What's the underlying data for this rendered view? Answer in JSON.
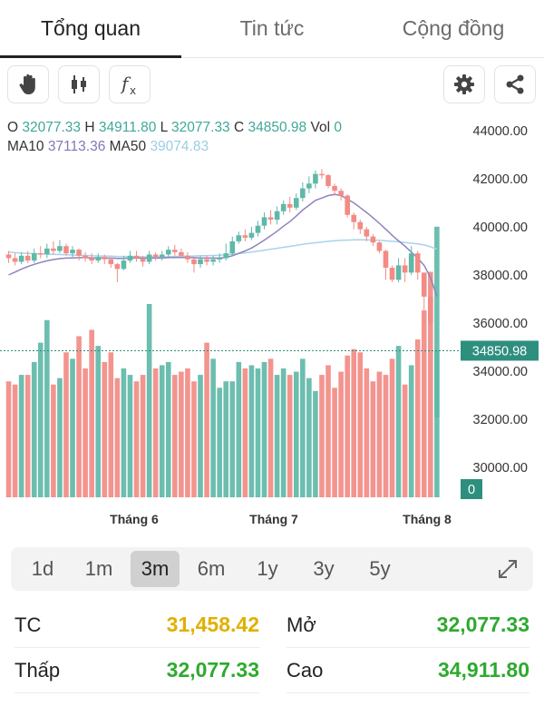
{
  "tabs": [
    {
      "label": "Tổng quan",
      "active": true
    },
    {
      "label": "Tin tức",
      "active": false
    },
    {
      "label": "Cộng đồng",
      "active": false
    }
  ],
  "toolbar": {
    "left_icons": [
      "hand-icon",
      "candlestick-icon",
      "function-icon"
    ],
    "right_icons": [
      "gear-icon",
      "share-icon"
    ]
  },
  "ohlc": {
    "o_label": "O",
    "o_value": "32077.33",
    "h_label": "H",
    "h_value": "34911.80",
    "l_label": "L",
    "l_value": "32077.33",
    "c_label": "C",
    "c_value": "34850.98",
    "vol_label": "Vol",
    "vol_value": "0",
    "ma10_label": "MA10",
    "ma10_value": "37113.36",
    "ma50_label": "MA50",
    "ma50_value": "39074.83"
  },
  "colors": {
    "up": "#5fb8a8",
    "down": "#f28b85",
    "ma10": "#8f83bd",
    "ma50": "#a9d3ea",
    "price_tag": "#2f8f7e",
    "tc": "#e0b000",
    "green": "#2eaa2e"
  },
  "chart_data": {
    "type": "candlestick",
    "y_ticks": [
      "44000.00",
      "42000.00",
      "40000.00",
      "38000.00",
      "36000.00",
      "34000.00",
      "32000.00",
      "30000.00"
    ],
    "ylim": [
      29000,
      44600
    ],
    "x_labels": [
      "Tháng 6",
      "Tháng 7",
      "Tháng 8"
    ],
    "current_price_label": "34850.98",
    "volume_label": "0",
    "candles": [
      [
        38850,
        38700,
        39000,
        38500
      ],
      [
        38700,
        38550,
        38900,
        38400
      ],
      [
        38550,
        38800,
        38950,
        38450
      ],
      [
        38800,
        38600,
        39000,
        38500
      ],
      [
        38600,
        38900,
        39100,
        38500
      ],
      [
        38900,
        38850,
        39200,
        38700
      ],
      [
        38850,
        39100,
        39300,
        38700
      ],
      [
        39100,
        39000,
        39400,
        38850
      ],
      [
        39000,
        39200,
        39450,
        38900
      ],
      [
        39200,
        38900,
        39300,
        38800
      ],
      [
        38900,
        39050,
        39200,
        38750
      ],
      [
        39050,
        38800,
        39100,
        38600
      ],
      [
        38800,
        38700,
        38950,
        38550
      ],
      [
        38700,
        38600,
        38900,
        38450
      ],
      [
        38600,
        38750,
        38900,
        38500
      ],
      [
        38750,
        38650,
        38850,
        38450
      ],
      [
        38650,
        38450,
        38700,
        38300
      ],
      [
        38450,
        38250,
        38500,
        37700
      ],
      [
        38250,
        38600,
        38800,
        38200
      ],
      [
        38600,
        38800,
        39000,
        38500
      ],
      [
        38800,
        38700,
        39000,
        38550
      ],
      [
        38700,
        38550,
        38800,
        38350
      ],
      [
        38550,
        38850,
        39000,
        38450
      ],
      [
        38850,
        38750,
        38950,
        38600
      ],
      [
        38750,
        38850,
        39000,
        38600
      ],
      [
        38850,
        39050,
        39200,
        38750
      ],
      [
        39050,
        38950,
        39250,
        38800
      ],
      [
        38950,
        38800,
        39100,
        38700
      ],
      [
        38800,
        38650,
        38950,
        38500
      ],
      [
        38650,
        38450,
        38700,
        38100
      ],
      [
        38450,
        38650,
        38800,
        38300
      ],
      [
        38650,
        38550,
        38800,
        38400
      ],
      [
        38550,
        38650,
        38800,
        38400
      ],
      [
        38650,
        38700,
        38900,
        38500
      ],
      [
        38700,
        38900,
        39300,
        38600
      ],
      [
        38900,
        39400,
        39600,
        38800
      ],
      [
        39400,
        39650,
        39800,
        39300
      ],
      [
        39650,
        39550,
        39900,
        39400
      ],
      [
        39550,
        39750,
        40000,
        39450
      ],
      [
        39750,
        40050,
        40250,
        39600
      ],
      [
        40050,
        40400,
        40600,
        39900
      ],
      [
        40400,
        40300,
        40700,
        40100
      ],
      [
        40300,
        40650,
        40850,
        40100
      ],
      [
        40650,
        40950,
        41100,
        40500
      ],
      [
        40950,
        40800,
        41250,
        40600
      ],
      [
        40800,
        41200,
        41400,
        40700
      ],
      [
        41200,
        41600,
        41850,
        41050
      ],
      [
        41600,
        41800,
        42100,
        41400
      ],
      [
        41800,
        42200,
        42350,
        41600
      ],
      [
        42200,
        42150,
        42400,
        42000
      ],
      [
        42150,
        41700,
        42200,
        41600
      ],
      [
        41700,
        41500,
        41800,
        41300
      ],
      [
        41500,
        41300,
        41600,
        41100
      ],
      [
        41300,
        40500,
        41350,
        40400
      ],
      [
        40500,
        40200,
        40600,
        39900
      ],
      [
        40200,
        39900,
        40300,
        39700
      ],
      [
        39900,
        39600,
        40000,
        39400
      ],
      [
        39600,
        39350,
        39700,
        39200
      ],
      [
        39350,
        39000,
        39400,
        38900
      ],
      [
        39000,
        38300,
        39050,
        37800
      ],
      [
        38300,
        37800,
        38400,
        37700
      ],
      [
        37800,
        38400,
        38700,
        37700
      ],
      [
        38400,
        38100,
        38700,
        37700
      ],
      [
        38100,
        38900,
        39200,
        38000
      ],
      [
        38900,
        38100,
        39000,
        37800
      ],
      [
        38100,
        37100,
        38100,
        36000
      ],
      [
        37100,
        36000,
        37200,
        35900
      ],
      [
        32077,
        34851,
        34912,
        32077
      ]
    ],
    "volumes": [
      36,
      35,
      38,
      38,
      42,
      48,
      55,
      35,
      37,
      45,
      43,
      50,
      40,
      52,
      47,
      42,
      45,
      37,
      40,
      38,
      36,
      38,
      60,
      40,
      41,
      42,
      38,
      39,
      40,
      36,
      38,
      48,
      43,
      34,
      36,
      36,
      42,
      40,
      41,
      40,
      42,
      43,
      38,
      40,
      38,
      39,
      43,
      37,
      33,
      38,
      41,
      34,
      39,
      44,
      46,
      45,
      40,
      36,
      39,
      38,
      43,
      47,
      35,
      41,
      49,
      58,
      70,
      84
    ],
    "vol_up": [
      0,
      0,
      1,
      0,
      1,
      1,
      1,
      0,
      1,
      0,
      1,
      0,
      0,
      0,
      1,
      0,
      0,
      0,
      1,
      1,
      0,
      0,
      1,
      0,
      1,
      1,
      0,
      0,
      0,
      0,
      1,
      0,
      1,
      1,
      1,
      1,
      1,
      0,
      1,
      1,
      1,
      0,
      1,
      1,
      0,
      1,
      1,
      1,
      1,
      0,
      0,
      0,
      0,
      0,
      0,
      0,
      0,
      0,
      0,
      0,
      0,
      1,
      0,
      1,
      0,
      0,
      0,
      1
    ],
    "ma10": [
      38000,
      38120,
      38240,
      38350,
      38440,
      38520,
      38590,
      38640,
      38680,
      38700,
      38710,
      38720,
      38720,
      38710,
      38710,
      38700,
      38700,
      38690,
      38690,
      38700,
      38710,
      38700,
      38700,
      38700,
      38710,
      38720,
      38730,
      38730,
      38730,
      38720,
      38700,
      38700,
      38700,
      38700,
      38730,
      38800,
      38900,
      39000,
      39120,
      39280,
      39450,
      39630,
      39820,
      40030,
      40220,
      40450,
      40700,
      40900,
      41100,
      41200,
      41300,
      41350,
      41300,
      41150,
      41000,
      40800,
      40600,
      40380,
      40150,
      39900,
      39650,
      39420,
      39200,
      38950,
      38700,
      38400,
      37900,
      37113
    ],
    "ma50": [
      38950,
      38930,
      38910,
      38900,
      38890,
      38880,
      38870,
      38860,
      38850,
      38840,
      38830,
      38820,
      38810,
      38800,
      38790,
      38790,
      38780,
      38770,
      38770,
      38760,
      38760,
      38750,
      38750,
      38750,
      38750,
      38760,
      38770,
      38780,
      38780,
      38790,
      38800,
      38800,
      38810,
      38820,
      38840,
      38860,
      38890,
      38920,
      38950,
      38990,
      39030,
      39070,
      39110,
      39150,
      39190,
      39230,
      39270,
      39310,
      39340,
      39370,
      39400,
      39420,
      39440,
      39450,
      39460,
      39460,
      39460,
      39450,
      39440,
      39420,
      39400,
      39380,
      39350,
      39320,
      39290,
      39250,
      39170,
      39075
    ]
  },
  "ranges": [
    {
      "label": "1d",
      "active": false
    },
    {
      "label": "1m",
      "active": false
    },
    {
      "label": "3m",
      "active": true
    },
    {
      "label": "6m",
      "active": false
    },
    {
      "label": "1y",
      "active": false
    },
    {
      "label": "3y",
      "active": false
    },
    {
      "label": "5y",
      "active": false
    }
  ],
  "stats": {
    "tc_label": "TC",
    "tc_value": "31,458.42",
    "open_label": "Mở",
    "open_value": "32,077.33",
    "low_label": "Thấp",
    "low_value": "32,077.33",
    "high_label": "Cao",
    "high_value": "34,911.80"
  }
}
